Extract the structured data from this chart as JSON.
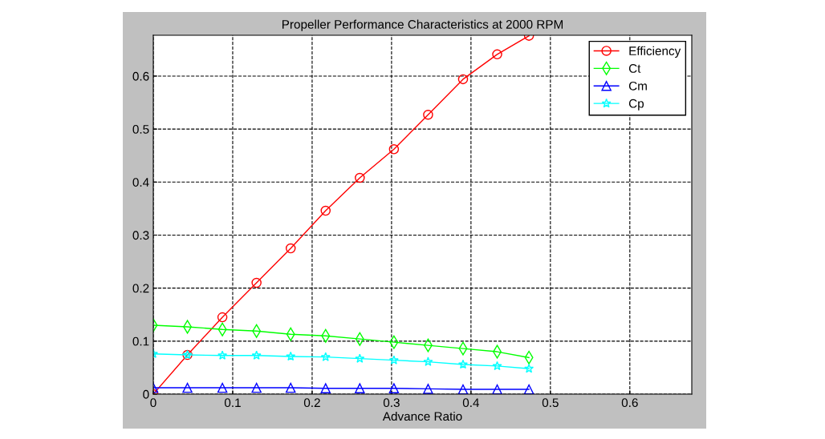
{
  "chart_data": {
    "type": "line",
    "title": "Propeller Performance Characteristics at 2000 RPM",
    "xlabel": "Advance Ratio",
    "x": [
      0,
      0.043,
      0.087,
      0.13,
      0.173,
      0.217,
      0.26,
      0.303,
      0.346,
      0.39,
      0.433,
      0.473
    ],
    "series": [
      {
        "name": "Efficiency",
        "color": "#ff0000",
        "marker": "circle",
        "values": [
          0,
          0.074,
          0.145,
          0.21,
          0.275,
          0.346,
          0.408,
          0.462,
          0.527,
          0.594,
          0.641,
          0.676
        ]
      },
      {
        "name": "Ct",
        "color": "#00ff00",
        "marker": "diamond",
        "values": [
          0.13,
          0.127,
          0.122,
          0.119,
          0.113,
          0.11,
          0.104,
          0.098,
          0.092,
          0.086,
          0.08,
          0.069
        ]
      },
      {
        "name": "Cm",
        "color": "#0000ff",
        "marker": "triangle",
        "values": [
          0.012,
          0.012,
          0.012,
          0.012,
          0.012,
          0.011,
          0.011,
          0.011,
          0.01,
          0.009,
          0.009,
          0.009
        ]
      },
      {
        "name": "Cp",
        "color": "#00ffff",
        "marker": "star",
        "values": [
          0.076,
          0.074,
          0.073,
          0.073,
          0.071,
          0.07,
          0.067,
          0.064,
          0.061,
          0.056,
          0.053,
          0.048
        ]
      }
    ],
    "xlim": [
      0,
      0.678
    ],
    "ylim": [
      0,
      0.677
    ],
    "xticks": [
      0,
      0.1,
      0.2,
      0.3,
      0.4,
      0.5,
      0.6
    ],
    "yticks": [
      0,
      0.1,
      0.2,
      0.3,
      0.4,
      0.5,
      0.6
    ],
    "grid": true,
    "legend": "top right",
    "line_style": "solid"
  }
}
